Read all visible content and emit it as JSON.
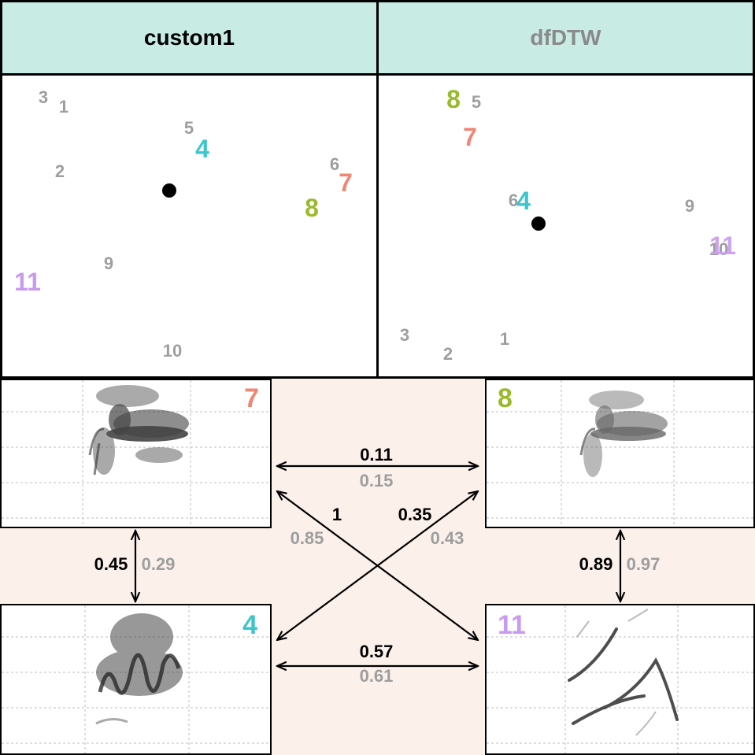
{
  "colors": {
    "header_bg": "#c8ebe4",
    "band_bg": "#fbf0ea",
    "grey": "#9e9e9e",
    "black": "#000000",
    "id4": "#3bc6cd",
    "id7": "#ef8676",
    "id8": "#98bb2c",
    "id11": "#c99bf0"
  },
  "headers": {
    "left": "custom1",
    "right": "dfDTW"
  },
  "left_points": [
    {
      "label": "3",
      "style": "small"
    },
    {
      "label": "1",
      "style": "small"
    },
    {
      "label": "5",
      "style": "small"
    },
    {
      "label": "4",
      "style": "big",
      "color_key": "id4"
    },
    {
      "label": "2",
      "style": "small"
    },
    {
      "label": "6",
      "style": "small"
    },
    {
      "label": "7",
      "style": "big",
      "color_key": "id7"
    },
    {
      "label": "8",
      "style": "big",
      "color_key": "id8"
    },
    {
      "label": "9",
      "style": "small"
    },
    {
      "label": "11",
      "style": "big",
      "color_key": "id11"
    },
    {
      "label": "10",
      "style": "small"
    }
  ],
  "right_points": [
    {
      "label": "8",
      "style": "big",
      "color_key": "id8"
    },
    {
      "label": "5",
      "style": "small"
    },
    {
      "label": "7",
      "style": "big",
      "color_key": "id7"
    },
    {
      "label": "6",
      "style": "small"
    },
    {
      "label": "4",
      "style": "big",
      "color_key": "id4"
    },
    {
      "label": "9",
      "style": "small"
    },
    {
      "label": "10",
      "style": "small"
    },
    {
      "label": "11",
      "style": "big",
      "color_key": "id11"
    },
    {
      "label": "3",
      "style": "small"
    },
    {
      "label": "2",
      "style": "small"
    },
    {
      "label": "1",
      "style": "small"
    }
  ],
  "spectrograms": {
    "top_left": {
      "id": "7",
      "color_key": "id7"
    },
    "top_right": {
      "id": "8",
      "color_key": "id8"
    },
    "bottom_left": {
      "id": "4",
      "color_key": "id4"
    },
    "bottom_right": {
      "id": "11",
      "color_key": "id11"
    }
  },
  "distances": {
    "top_pair": {
      "custom1": "0.11",
      "dfDTW": "0.15"
    },
    "bottom_pair": {
      "custom1": "0.57",
      "dfDTW": "0.61"
    },
    "diag_7_11": {
      "custom1": "1",
      "dfDTW": "0.85"
    },
    "diag_4_8": {
      "custom1": "0.35",
      "dfDTW": "0.43"
    },
    "left_pair": {
      "custom1": "0.45",
      "dfDTW": "0.29"
    },
    "right_pair": {
      "custom1": "0.89",
      "dfDTW": "0.97"
    }
  }
}
